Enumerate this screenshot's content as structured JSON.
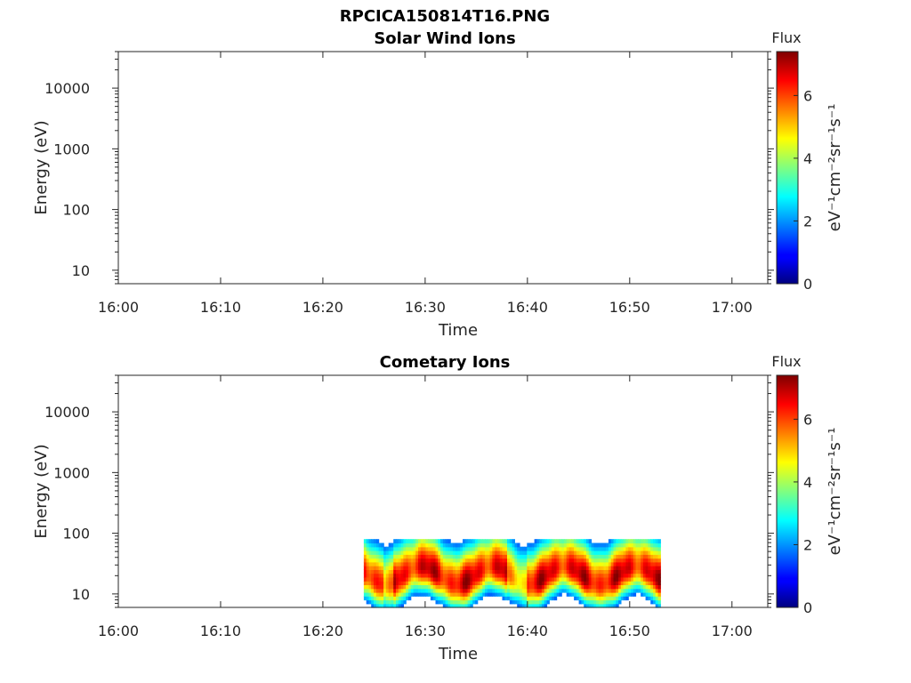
{
  "figure_title": "RPCICA150814T16.PNG",
  "colorbar": {
    "label": "Flux",
    "unit_label": "eV⁻¹cm⁻²sr⁻¹s⁻¹",
    "ticks": [
      "0",
      "2",
      "4",
      "6"
    ],
    "range": [
      0,
      7.4
    ],
    "colormap": "jet"
  },
  "chart_data": [
    {
      "type": "heatmap",
      "title": "Solar Wind Ions",
      "xlabel": "Time",
      "ylabel": "Energy (eV)",
      "x_ticks": [
        "16:00",
        "16:10",
        "16:20",
        "16:30",
        "16:40",
        "16:50",
        "17:00"
      ],
      "y_ticks": [
        "10",
        "100",
        "1000",
        "10000"
      ],
      "x_range_minutes": [
        0,
        63.5
      ],
      "y_range_eV": [
        6,
        40000
      ],
      "y_scale": "log",
      "data": []
    },
    {
      "type": "heatmap",
      "title": "Cometary Ions",
      "xlabel": "Time",
      "ylabel": "Energy (eV)",
      "x_ticks": [
        "16:00",
        "16:10",
        "16:20",
        "16:30",
        "16:40",
        "16:50",
        "17:00"
      ],
      "y_ticks": [
        "10",
        "100",
        "1000",
        "10000"
      ],
      "x_range_minutes": [
        0,
        63.5
      ],
      "y_range_eV": [
        6,
        40000
      ],
      "y_scale": "log",
      "data_time_range": [
        "16:24",
        "16:53"
      ],
      "data_energy_range_eV": [
        6,
        80
      ],
      "peak_energy_eV": 20,
      "peak_flux": 7.2,
      "low_flux_intervals": [
        "16:26-16:27",
        "16:38-16:40"
      ]
    }
  ]
}
